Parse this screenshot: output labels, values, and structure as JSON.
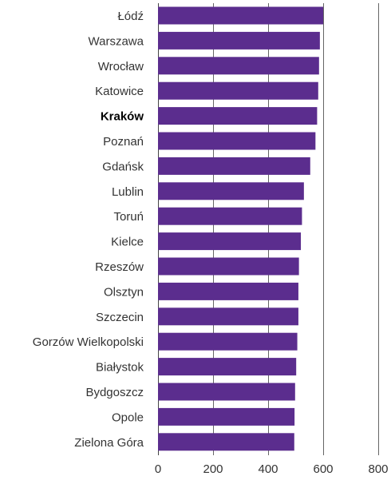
{
  "chart_data": {
    "type": "bar",
    "orientation": "horizontal",
    "categories": [
      "Łódź",
      "Warszawa",
      "Wrocław",
      "Katowice",
      "Kraków",
      "Poznań",
      "Gdańsk",
      "Lublin",
      "Toruń",
      "Kielce",
      "Rzeszów",
      "Olsztyn",
      "Szczecin",
      "Gorzów Wielkopolski",
      "Białystok",
      "Bydgoszcz",
      "Opole",
      "Zielona Góra"
    ],
    "values": [
      600,
      588,
      585,
      582,
      578,
      572,
      553,
      530,
      523,
      519,
      512,
      510,
      510,
      506,
      502,
      498,
      496,
      495
    ],
    "highlighted_category": "Kraków",
    "xlim": [
      0,
      800
    ],
    "xticks": [
      0,
      200,
      400,
      600,
      800
    ],
    "xtick_labels": [
      "0",
      "200",
      "400",
      "600",
      "800"
    ],
    "grid": "vertical",
    "bar_color": "#5b2d8e",
    "title": "",
    "xlabel": "",
    "ylabel": ""
  }
}
